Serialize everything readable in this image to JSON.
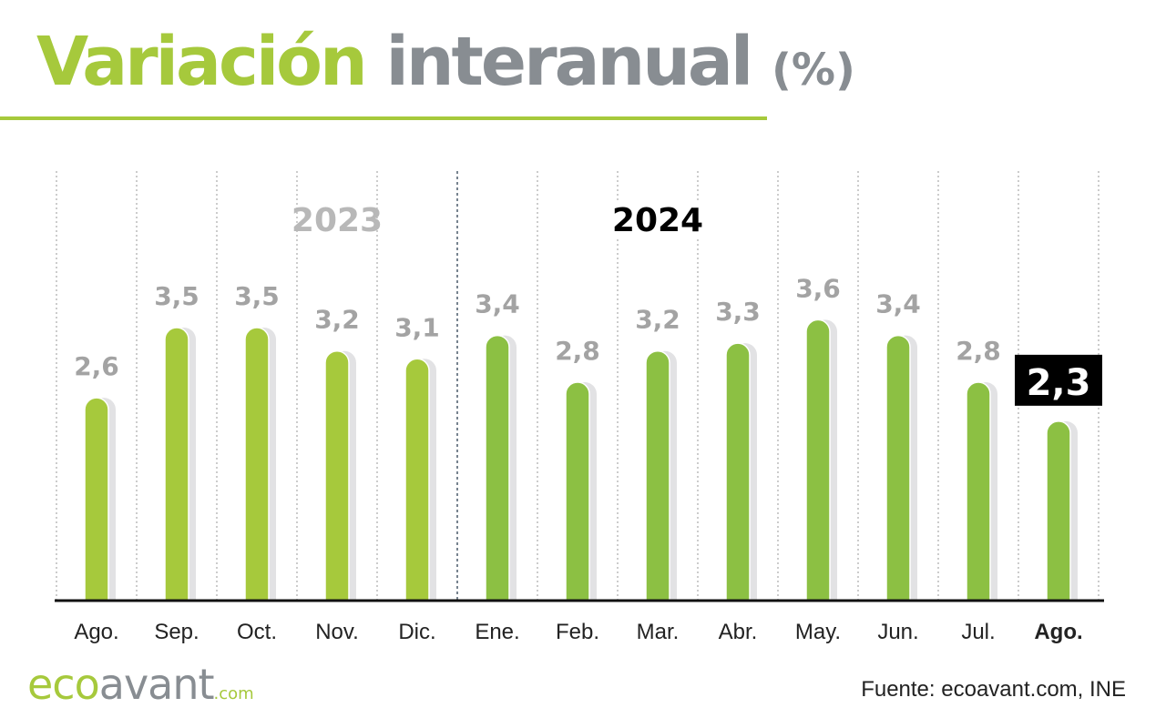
{
  "header": {
    "title_part1": "Variación",
    "title_part2": "interanual",
    "title_part3": "(%)"
  },
  "footer": {
    "logo_eco": "eco",
    "logo_avant": "avant",
    "logo_dotcom": ".com",
    "source": "Fuente: ecoavant.com, INE"
  },
  "colors": {
    "accent": "#a6c93c",
    "bar_2023": "#a6c93c",
    "bar_2024": "#8cc043",
    "shadow": "#e2e2e4",
    "label_grey": "#a3a3a3",
    "highlight_bg": "#000000"
  },
  "chart_data": {
    "type": "bar",
    "title": "Variación interanual (%)",
    "xlabel": "",
    "ylabel": "",
    "ylim": [
      0,
      4.2
    ],
    "grid": true,
    "categories": [
      "Ago.",
      "Sep.",
      "Oct.",
      "Nov.",
      "Dic.",
      "Ene.",
      "Feb.",
      "Mar.",
      "Abr.",
      "May.",
      "Jun.",
      "Jul.",
      "Ago."
    ],
    "values": [
      2.6,
      3.5,
      3.5,
      3.2,
      3.1,
      3.4,
      2.8,
      3.2,
      3.3,
      3.6,
      3.4,
      2.8,
      2.3
    ],
    "value_labels": [
      "2,6",
      "3,5",
      "3,5",
      "3,2",
      "3,1",
      "3,4",
      "2,8",
      "3,2",
      "3,3",
      "3,6",
      "3,4",
      "2,8",
      "2,3"
    ],
    "groups": [
      {
        "label": "2023",
        "start": 0,
        "end": 4
      },
      {
        "label": "2024",
        "start": 5,
        "end": 12
      }
    ],
    "highlight_index": 12
  }
}
